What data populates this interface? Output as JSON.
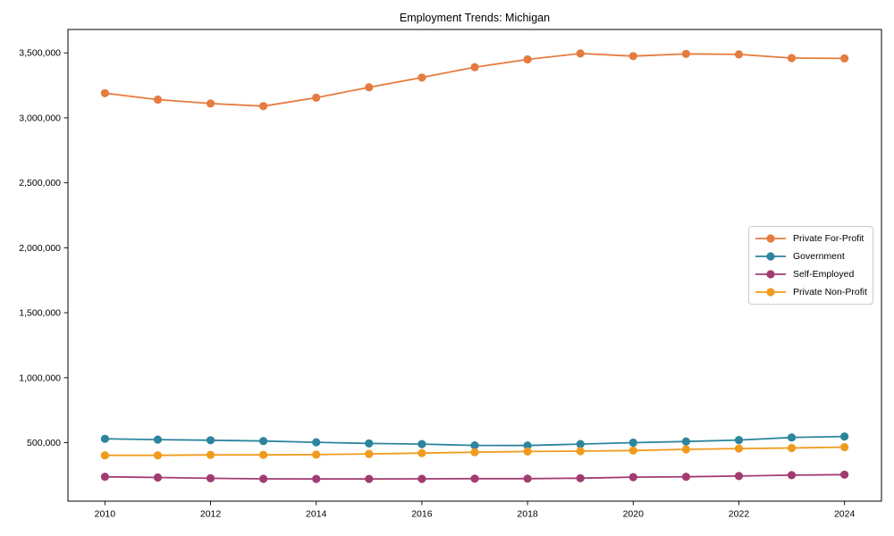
{
  "window": {
    "background": "#ffffff",
    "axis_color": "#000000",
    "legend_border_color": "#cccccc"
  },
  "chart_data": {
    "type": "line",
    "title": "Employment Trends: Michigan",
    "xlabel": "",
    "ylabel": "",
    "grid": false,
    "legend_position": "center-right",
    "x": [
      2010,
      2011,
      2012,
      2013,
      2014,
      2015,
      2016,
      2017,
      2018,
      2019,
      2020,
      2021,
      2022,
      2023,
      2024
    ],
    "series": [
      {
        "name": "Private For-Profit",
        "color": "#e57b3e",
        "marker": "circle",
        "values": [
          3190000,
          3140000,
          3110000,
          3090000,
          3155000,
          3235000,
          3310000,
          3390000,
          3450000,
          3495000,
          3475000,
          3492000,
          3488000,
          3460000,
          3457000
        ]
      },
      {
        "name": "Government",
        "color": "#2d859d",
        "marker": "circle",
        "values": [
          530000,
          524000,
          519000,
          513000,
          503000,
          494000,
          489000,
          479000,
          478000,
          489000,
          500000,
          509000,
          520000,
          540000,
          548000
        ]
      },
      {
        "name": "Self-Employed",
        "color": "#a23b72",
        "marker": "circle",
        "values": [
          238000,
          232000,
          226000,
          222000,
          221000,
          221000,
          222000,
          223000,
          223000,
          227000,
          235000,
          238000,
          243000,
          250000,
          254000
        ]
      },
      {
        "name": "Private Non-Profit",
        "color": "#f09b1e",
        "marker": "circle",
        "values": [
          403000,
          403000,
          406000,
          406000,
          408000,
          414000,
          420000,
          427000,
          432000,
          435000,
          440000,
          449000,
          455000,
          459000,
          466000
        ]
      }
    ],
    "x_ticks": [
      2010,
      2012,
      2014,
      2016,
      2018,
      2020,
      2022,
      2024
    ],
    "x_tick_labels": [
      "2010",
      "2012",
      "2014",
      "2016",
      "2018",
      "2020",
      "2022",
      "2024"
    ],
    "y_ticks": [
      500000,
      1000000,
      1500000,
      2000000,
      2500000,
      3000000,
      3500000
    ],
    "y_tick_labels": [
      "500,000",
      "1,000,000",
      "1,500,000",
      "2,000,000",
      "2,500,000",
      "3,000,000",
      "3,500,000"
    ],
    "xlim": [
      2009.3,
      2024.7
    ],
    "ylim": [
      50000,
      3680000
    ]
  }
}
